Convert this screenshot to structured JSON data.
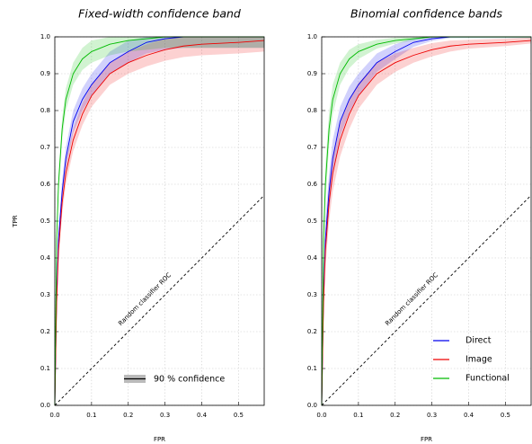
{
  "chart_data": [
    {
      "type": "line",
      "title": "Fixed-width confidence band",
      "xlabel": "FPR",
      "ylabel": "TPR",
      "annotation": "Random classifier ROC",
      "band_label": "90 % confidence",
      "band_width": 0.03,
      "legend": false,
      "xlim": [
        0,
        0.57
      ],
      "ylim": [
        0,
        1
      ],
      "grid": true,
      "xticks": [
        {
          "value": 0,
          "label": "0.0"
        },
        0.1,
        0.2,
        0.3,
        0.4,
        0.5
      ],
      "yticks": [
        {
          "value": 0,
          "label": "0.0"
        },
        0.1,
        0.2,
        0.3,
        0.4,
        0.5,
        0.6,
        0.7,
        0.8,
        0.9,
        {
          "value": 1,
          "label": "1.0"
        }
      ],
      "x": [
        0,
        0.005,
        0.01,
        0.02,
        0.03,
        0.05,
        0.075,
        0.1,
        0.15,
        0.2,
        0.25,
        0.3,
        0.35,
        0.4,
        0.5,
        0.57
      ],
      "series": [
        {
          "name": "Direct",
          "color": "#0000ee",
          "values": [
            0,
            0.3,
            0.45,
            0.58,
            0.67,
            0.77,
            0.83,
            0.87,
            0.93,
            0.96,
            0.985,
            0.995,
            1,
            1,
            1,
            1
          ]
        },
        {
          "name": "Image",
          "color": "#ee0000",
          "values": [
            0,
            0.28,
            0.42,
            0.55,
            0.63,
            0.72,
            0.79,
            0.84,
            0.9,
            0.93,
            0.95,
            0.965,
            0.975,
            0.98,
            0.985,
            0.99
          ]
        },
        {
          "name": "Functional",
          "color": "#00bb00",
          "values": [
            0,
            0.45,
            0.6,
            0.75,
            0.83,
            0.9,
            0.94,
            0.96,
            0.98,
            0.99,
            0.995,
            1,
            1,
            1,
            1,
            1
          ]
        }
      ]
    },
    {
      "type": "line",
      "title": "Binomial confidence bands",
      "xlabel": "FPR",
      "annotation": "Random classifier ROC",
      "legend": true,
      "xlim": [
        0,
        0.57
      ],
      "ylim": [
        0,
        1
      ],
      "grid": true,
      "xticks": [
        {
          "value": 0,
          "label": "0.0"
        },
        0.1,
        0.2,
        0.3,
        0.4,
        0.5
      ],
      "yticks": [
        {
          "value": 0,
          "label": "0.0"
        },
        0.1,
        0.2,
        0.3,
        0.4,
        0.5,
        0.6,
        0.7,
        0.8,
        0.9,
        {
          "value": 1,
          "label": "1.0"
        }
      ],
      "x": [
        0,
        0.005,
        0.01,
        0.02,
        0.03,
        0.05,
        0.075,
        0.1,
        0.15,
        0.2,
        0.25,
        0.3,
        0.35,
        0.4,
        0.5,
        0.57
      ],
      "series": [
        {
          "name": "Direct",
          "color": "#0000ee",
          "values": [
            0,
            0.3,
            0.45,
            0.58,
            0.67,
            0.77,
            0.83,
            0.87,
            0.93,
            0.96,
            0.985,
            0.995,
            1,
            1,
            1,
            1
          ],
          "band": [
            0,
            0.05,
            0.05,
            0.05,
            0.05,
            0.04,
            0.035,
            0.03,
            0.025,
            0.02,
            0.012,
            0.006,
            0.003,
            0.003,
            0.003,
            0.003
          ]
        },
        {
          "name": "Image",
          "color": "#ee0000",
          "values": [
            0,
            0.28,
            0.42,
            0.55,
            0.63,
            0.72,
            0.79,
            0.84,
            0.9,
            0.93,
            0.95,
            0.965,
            0.975,
            0.98,
            0.985,
            0.99
          ],
          "band": [
            0,
            0.05,
            0.05,
            0.05,
            0.05,
            0.045,
            0.04,
            0.035,
            0.03,
            0.025,
            0.02,
            0.018,
            0.015,
            0.012,
            0.01,
            0.008
          ]
        },
        {
          "name": "Functional",
          "color": "#00bb00",
          "values": [
            0,
            0.45,
            0.6,
            0.75,
            0.83,
            0.9,
            0.94,
            0.96,
            0.98,
            0.99,
            0.995,
            1,
            1,
            1,
            1,
            1
          ],
          "band": [
            0,
            0.05,
            0.05,
            0.045,
            0.04,
            0.03,
            0.025,
            0.02,
            0.012,
            0.008,
            0.005,
            0.003,
            0.003,
            0.003,
            0.003,
            0.003
          ]
        }
      ]
    }
  ]
}
